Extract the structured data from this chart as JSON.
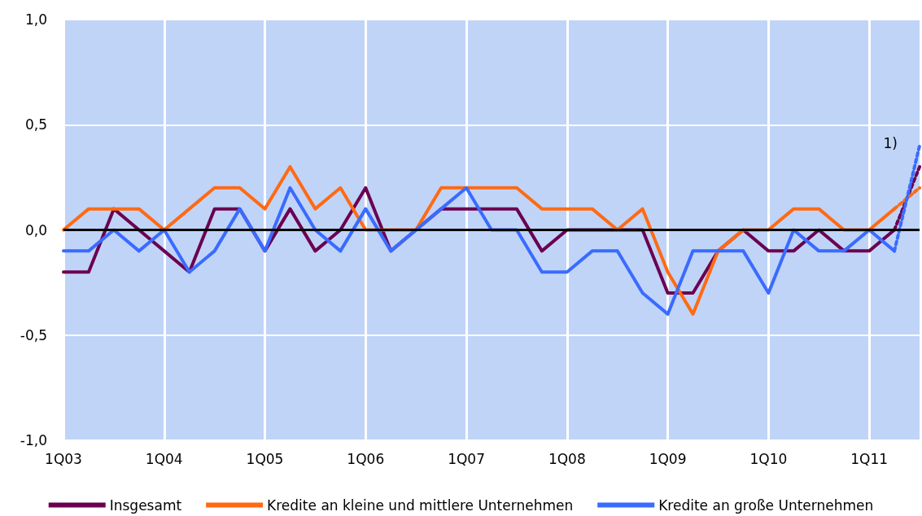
{
  "chart_data": {
    "type": "line",
    "categories": [
      "1Q03",
      null,
      null,
      null,
      "1Q04",
      null,
      null,
      null,
      "1Q05",
      null,
      null,
      null,
      "1Q06",
      null,
      null,
      null,
      "1Q07",
      null,
      null,
      null,
      "1Q08",
      null,
      null,
      null,
      "1Q09",
      null,
      null,
      null,
      "1Q10",
      null,
      null,
      null,
      "1Q11",
      null,
      null
    ],
    "series": [
      {
        "name": "Insgesamt",
        "color": "#6b0050",
        "line_style": "solid",
        "values": [
          -0.2,
          -0.2,
          0.1,
          0.0,
          -0.1,
          -0.2,
          0.1,
          0.1,
          -0.1,
          0.1,
          -0.1,
          0.0,
          0.2,
          -0.1,
          0.0,
          0.1,
          0.1,
          0.1,
          0.1,
          -0.1,
          0.0,
          0.0,
          0.0,
          0.0,
          -0.3,
          -0.3,
          -0.1,
          0.0,
          -0.1,
          -0.1,
          0.0,
          -0.1,
          -0.1,
          0.0,
          null
        ]
      },
      {
        "name": "Kredite an kleine und mittlere Unternehmen",
        "color": "#ff6a13",
        "line_style": "solid",
        "values": [
          0.0,
          0.1,
          0.1,
          0.1,
          0.0,
          0.1,
          0.2,
          0.2,
          0.1,
          0.3,
          0.1,
          0.2,
          0.0,
          0.0,
          0.0,
          0.2,
          0.2,
          0.2,
          0.2,
          0.1,
          0.1,
          0.1,
          0.0,
          0.1,
          -0.2,
          -0.4,
          -0.1,
          0.0,
          0.0,
          0.1,
          0.1,
          0.0,
          0.0,
          0.1,
          null
        ]
      },
      {
        "name": "Kredite an große Unternehmen",
        "color": "#3a6bff",
        "line_style": "solid",
        "values": [
          -0.1,
          -0.1,
          0.0,
          -0.1,
          0.0,
          -0.2,
          -0.1,
          0.1,
          -0.1,
          0.2,
          0.0,
          -0.1,
          0.1,
          -0.1,
          0.0,
          0.1,
          0.2,
          0.0,
          0.0,
          -0.2,
          -0.2,
          -0.1,
          -0.1,
          -0.3,
          -0.4,
          -0.1,
          -0.1,
          -0.1,
          -0.3,
          0.0,
          -0.1,
          -0.1,
          0.0,
          -0.1,
          null
        ]
      },
      {
        "color": "#6b0050",
        "line_style": "dotted",
        "values": [
          null,
          null,
          null,
          null,
          null,
          null,
          null,
          null,
          null,
          null,
          null,
          null,
          null,
          null,
          null,
          null,
          null,
          null,
          null,
          null,
          null,
          null,
          null,
          null,
          null,
          null,
          null,
          null,
          null,
          null,
          null,
          null,
          null,
          0.0,
          0.3
        ]
      },
      {
        "color": "#ff6a13",
        "line_style": "dotted",
        "values": [
          null,
          null,
          null,
          null,
          null,
          null,
          null,
          null,
          null,
          null,
          null,
          null,
          null,
          null,
          null,
          null,
          null,
          null,
          null,
          null,
          null,
          null,
          null,
          null,
          null,
          null,
          null,
          null,
          null,
          null,
          null,
          null,
          null,
          0.1,
          0.2
        ]
      },
      {
        "color": "#3a6bff",
        "line_style": "dotted",
        "values": [
          null,
          null,
          null,
          null,
          null,
          null,
          null,
          null,
          null,
          null,
          null,
          null,
          null,
          null,
          null,
          null,
          null,
          null,
          null,
          null,
          null,
          null,
          null,
          null,
          null,
          null,
          null,
          null,
          null,
          null,
          null,
          null,
          null,
          -0.1,
          0.4
        ]
      }
    ],
    "ylim": [
      -1.0,
      1.0
    ],
    "yticks": [
      {
        "value": -1.0,
        "label": "-1,0"
      },
      {
        "value": -0.5,
        "label": "-0,5"
      },
      {
        "value": 0.0,
        "label": "0,0"
      },
      {
        "value": 0.5,
        "label": "0,5"
      },
      {
        "value": 1.0,
        "label": "1,0"
      }
    ],
    "ref_lines": [
      {
        "axis": "y",
        "value": 0.0,
        "color": "#000000"
      }
    ],
    "annotations": [
      "1)"
    ],
    "grid": true,
    "legend": "bottom",
    "marker": "none"
  }
}
